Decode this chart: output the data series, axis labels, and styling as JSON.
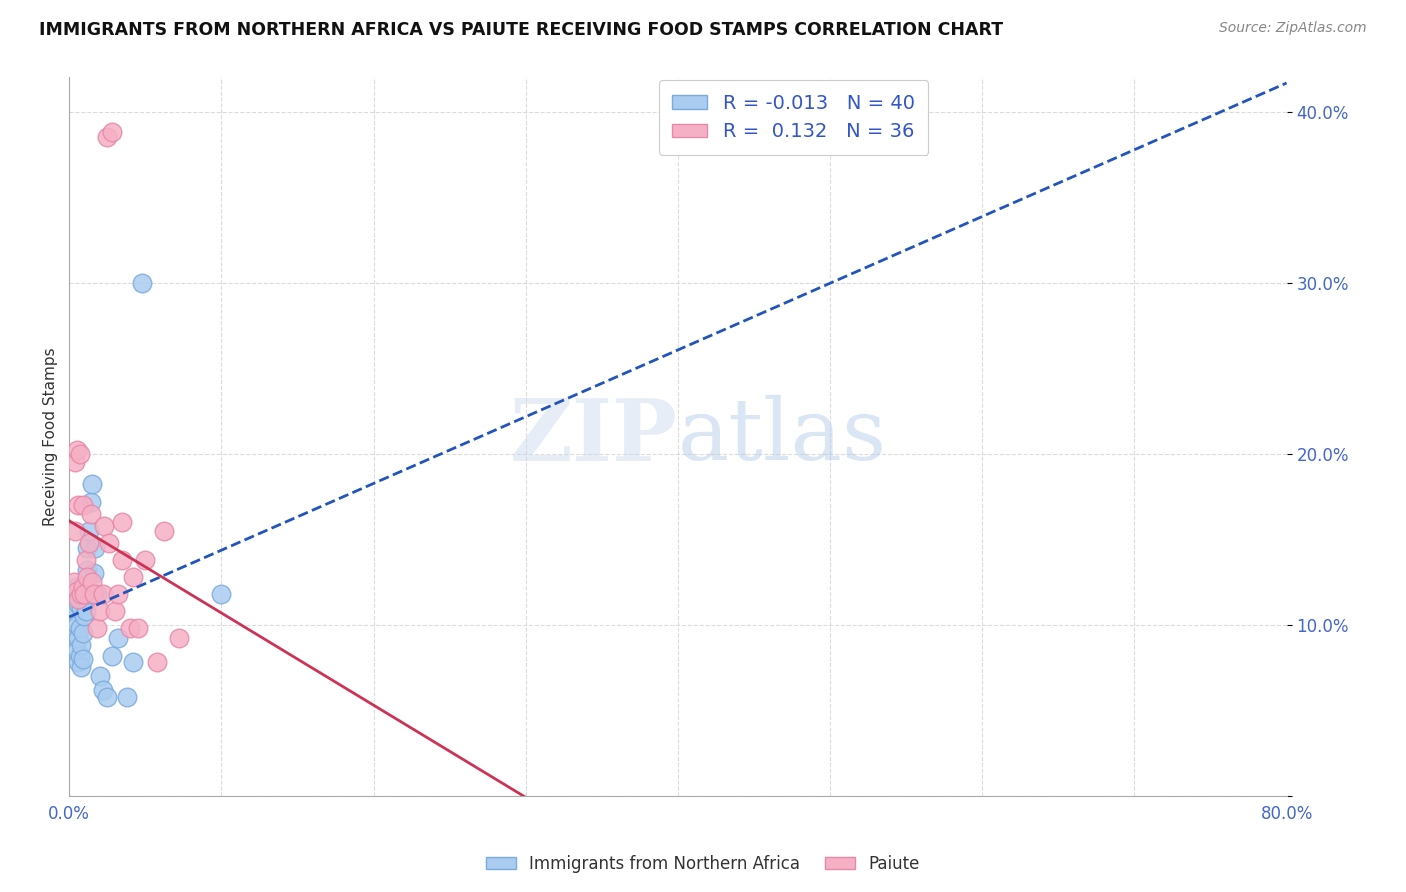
{
  "title": "IMMIGRANTS FROM NORTHERN AFRICA VS PAIUTE RECEIVING FOOD STAMPS CORRELATION CHART",
  "source": "Source: ZipAtlas.com",
  "ylabel": "Receiving Food Stamps",
  "xlim": [
    0.0,
    0.8
  ],
  "ylim": [
    0.0,
    0.42
  ],
  "xticks": [
    0.0,
    0.1,
    0.2,
    0.3,
    0.4,
    0.5,
    0.6,
    0.7,
    0.8
  ],
  "xticklabels": [
    "0.0%",
    "",
    "",
    "",
    "",
    "",
    "",
    "",
    "80.0%"
  ],
  "yticks": [
    0.0,
    0.1,
    0.2,
    0.3,
    0.4
  ],
  "yticklabels": [
    "",
    "10.0%",
    "20.0%",
    "30.0%",
    "40.0%"
  ],
  "blue_R": -0.013,
  "blue_N": 40,
  "pink_R": 0.132,
  "pink_N": 36,
  "blue_color": "#aaccf0",
  "pink_color": "#f5b0c5",
  "blue_edge": "#7aabdf",
  "pink_edge": "#e888a8",
  "trend_blue": "#2255bb",
  "trend_pink": "#cc3355",
  "watermark_zip": "ZIP",
  "watermark_atlas": "atlas",
  "blue_points_x": [
    0.003,
    0.004,
    0.004,
    0.005,
    0.005,
    0.005,
    0.006,
    0.006,
    0.006,
    0.007,
    0.007,
    0.007,
    0.008,
    0.008,
    0.008,
    0.009,
    0.009,
    0.01,
    0.01,
    0.01,
    0.011,
    0.011,
    0.012,
    0.012,
    0.013,
    0.013,
    0.014,
    0.015,
    0.016,
    0.017,
    0.018,
    0.02,
    0.022,
    0.025,
    0.028,
    0.032,
    0.038,
    0.042,
    0.048,
    0.1
  ],
  "blue_points_y": [
    0.115,
    0.095,
    0.108,
    0.085,
    0.1,
    0.122,
    0.078,
    0.092,
    0.112,
    0.082,
    0.098,
    0.118,
    0.075,
    0.088,
    0.11,
    0.08,
    0.095,
    0.105,
    0.115,
    0.118,
    0.108,
    0.12,
    0.132,
    0.145,
    0.155,
    0.118,
    0.172,
    0.182,
    0.13,
    0.145,
    0.118,
    0.07,
    0.062,
    0.058,
    0.082,
    0.092,
    0.058,
    0.078,
    0.3,
    0.118
  ],
  "pink_points_x": [
    0.003,
    0.004,
    0.004,
    0.005,
    0.005,
    0.006,
    0.006,
    0.007,
    0.008,
    0.009,
    0.009,
    0.01,
    0.011,
    0.012,
    0.013,
    0.014,
    0.015,
    0.016,
    0.018,
    0.02,
    0.022,
    0.025,
    0.028,
    0.03,
    0.032,
    0.035,
    0.04,
    0.045,
    0.05,
    0.058,
    0.023,
    0.026,
    0.035,
    0.042,
    0.062,
    0.072
  ],
  "pink_points_y": [
    0.125,
    0.195,
    0.155,
    0.202,
    0.12,
    0.17,
    0.115,
    0.2,
    0.118,
    0.122,
    0.17,
    0.118,
    0.138,
    0.128,
    0.148,
    0.165,
    0.125,
    0.118,
    0.098,
    0.108,
    0.118,
    0.385,
    0.388,
    0.108,
    0.118,
    0.138,
    0.098,
    0.098,
    0.138,
    0.078,
    0.158,
    0.148,
    0.16,
    0.128,
    0.155,
    0.092
  ]
}
